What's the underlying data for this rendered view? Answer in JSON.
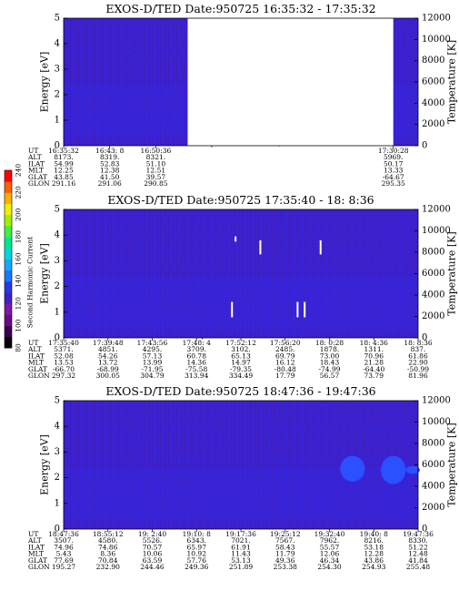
{
  "chart_data": {
    "type": "heatmap",
    "colorbar": {
      "label": "Second Harmonic Current",
      "ticks": [
        "80",
        "100",
        "120",
        "140",
        "160",
        "180",
        "200",
        "220",
        "240"
      ],
      "range": [
        80,
        240
      ],
      "colors": [
        "#000000",
        "#3c0050",
        "#6a0a8a",
        "#7a1aa8",
        "#4020c8",
        "#2838e8",
        "#1878ff",
        "#14a8ff",
        "#00d8e0",
        "#00e890",
        "#40f040",
        "#a0f000",
        "#f0f000",
        "#ffb000",
        "#ff6000",
        "#ff0000"
      ]
    },
    "panels": [
      {
        "title": "EXOS-D/TED   Date:950725   16:35:32 - 17:35:32",
        "ylabel": "Energy [eV]",
        "ylabel_right": "Temperature [K]",
        "ylim": [
          0,
          5
        ],
        "yticks": [
          "0",
          "1",
          "2",
          "3",
          "4",
          "5"
        ],
        "y2lim": [
          0,
          12000
        ],
        "y2ticks": [
          "0",
          "2000",
          "4000",
          "6000",
          "8000",
          "10000",
          "12000"
        ],
        "gap": [
          0.35,
          0.93
        ],
        "blue_patches": [],
        "streaks": [],
        "ephemeris": {
          "labels": [
            "UT",
            "ALT",
            "ILAT",
            "MLT",
            "GLAT",
            "GLON"
          ],
          "columns": [
            {
              "pos": 0.0,
              "values": [
                "16:35:32",
                "8173.",
                "54.99",
                "12.25",
                "43.85",
                "291.16"
              ]
            },
            {
              "pos": 0.13,
              "values": [
                "16:43: 8",
                "8319.",
                "52.83",
                "12.38",
                "41.50",
                "291.06"
              ]
            },
            {
              "pos": 0.26,
              "values": [
                "16:50:36",
                "8321.",
                "51.10",
                "12.51",
                "39.57",
                "290.85"
              ]
            },
            {
              "pos": 0.93,
              "values": [
                "17:30:28",
                "5969.",
                "50.17",
                "13.33",
                "-64.67",
                "295.35"
              ]
            }
          ]
        }
      },
      {
        "title": "EXOS-D/TED   Date:950725   17:35:40 - 18: 8:36",
        "ylabel": "Energy [eV]",
        "ylabel_right": "Temperature [K]",
        "ylim": [
          0,
          5
        ],
        "yticks": [
          "0",
          "1",
          "2",
          "3",
          "4",
          "5"
        ],
        "y2lim": [
          0,
          12000
        ],
        "y2ticks": [
          "0",
          "2000",
          "4000",
          "6000",
          "8000",
          "10000",
          "12000"
        ],
        "gap": null,
        "blue_patches": [],
        "streaks": [
          {
            "t": 0.485,
            "e0": 3.75,
            "e1": 3.95
          },
          {
            "t": 0.555,
            "e0": 3.25,
            "e1": 3.8
          },
          {
            "t": 0.725,
            "e0": 3.25,
            "e1": 3.8
          },
          {
            "t": 0.475,
            "e0": 0.8,
            "e1": 1.4
          },
          {
            "t": 0.66,
            "e0": 0.8,
            "e1": 1.4
          },
          {
            "t": 0.68,
            "e0": 0.8,
            "e1": 1.4
          }
        ],
        "ephemeris": {
          "labels": [
            "UT",
            "ALT",
            "ILAT",
            "MLT",
            "GLAT",
            "GLON"
          ],
          "columns": [
            {
              "pos": 0.0,
              "values": [
                "17:35:40",
                "5371.",
                "52.08",
                "13.53",
                "-66.70",
                "297.32"
              ]
            },
            {
              "pos": 0.125,
              "values": [
                "17:39:48",
                "4851.",
                "54.26",
                "13.72",
                "-68.99",
                "300.05"
              ]
            },
            {
              "pos": 0.25,
              "values": [
                "17:43:56",
                "4295.",
                "57.13",
                "13.99",
                "-71.95",
                "304.79"
              ]
            },
            {
              "pos": 0.375,
              "values": [
                "17:48: 4",
                "3709.",
                "60.78",
                "14.36",
                "-75.58",
                "313.94"
              ]
            },
            {
              "pos": 0.5,
              "values": [
                "17:52:12",
                "3102.",
                "65.13",
                "14.97",
                "-79.35",
                "334.49"
              ]
            },
            {
              "pos": 0.625,
              "values": [
                "17:56:20",
                "2485.",
                "69.79",
                "16.12",
                "-80.48",
                "17.79"
              ]
            },
            {
              "pos": 0.75,
              "values": [
                "18: 0:28",
                "1878.",
                "73.00",
                "18.43",
                "-74.99",
                "56.57"
              ]
            },
            {
              "pos": 0.875,
              "values": [
                "18: 4:36",
                "1311.",
                "70.96",
                "21.28",
                "-64.40",
                "73.79"
              ]
            },
            {
              "pos": 1.0,
              "values": [
                "18: 8:36",
                "837.",
                "61.86",
                "22.90",
                "-50.99",
                "81.96"
              ]
            }
          ]
        }
      },
      {
        "title": "EXOS-D/TED   Date:950725   18:47:36 - 19:47:36",
        "ylabel": "Energy [eV]",
        "ylabel_right": "Temperature [K]",
        "ylim": [
          0,
          5
        ],
        "yticks": [
          "0",
          "1",
          "2",
          "3",
          "4",
          "5"
        ],
        "y2lim": [
          0,
          12000
        ],
        "y2ticks": [
          "0",
          "2000",
          "4000",
          "6000",
          "8000",
          "10000",
          "12000"
        ],
        "gap": null,
        "blue_patches": [
          {
            "t": 0.815,
            "e": 2.35,
            "rt": 0.035,
            "re": 0.5
          },
          {
            "t": 0.93,
            "e": 2.3,
            "rt": 0.035,
            "re": 0.55
          },
          {
            "t": 0.985,
            "e": 2.3,
            "rt": 0.02,
            "re": 0.15
          }
        ],
        "streaks": [],
        "ephemeris": {
          "labels": [
            "UT",
            "ALT",
            "ILAT",
            "MLT",
            "GLAT",
            "GLON"
          ],
          "columns": [
            {
              "pos": 0.0,
              "values": [
                "18:47:36",
                "3507.",
                "74.96",
                "5.43",
                "77.69",
                "195.27"
              ]
            },
            {
              "pos": 0.125,
              "values": [
                "18:55:12",
                "4580.",
                "74.86",
                "8.36",
                "70.84",
                "232.90"
              ]
            },
            {
              "pos": 0.25,
              "values": [
                "19: 2:40",
                "5526.",
                "70.57",
                "10.06",
                "63.59",
                "244.46"
              ]
            },
            {
              "pos": 0.375,
              "values": [
                "19:10: 8",
                "6343.",
                "65.97",
                "10.92",
                "57.76",
                "249.36"
              ]
            },
            {
              "pos": 0.5,
              "values": [
                "19:17:36",
                "7021.",
                "61.91",
                "11.43",
                "53.13",
                "251.89"
              ]
            },
            {
              "pos": 0.625,
              "values": [
                "19:25:12",
                "7567.",
                "58.43",
                "11.79",
                "49.36",
                "253.38"
              ]
            },
            {
              "pos": 0.75,
              "values": [
                "19:32:40",
                "7962.",
                "55.57",
                "12.06",
                "46.34",
                "254.30"
              ]
            },
            {
              "pos": 0.875,
              "values": [
                "19:40: 8",
                "8216.",
                "53.18",
                "12.28",
                "43.86",
                "254.93"
              ]
            },
            {
              "pos": 1.0,
              "values": [
                "19:47:36",
                "8330.",
                "51.22",
                "12.48",
                "41.84",
                "255.48"
              ]
            }
          ]
        }
      }
    ]
  }
}
